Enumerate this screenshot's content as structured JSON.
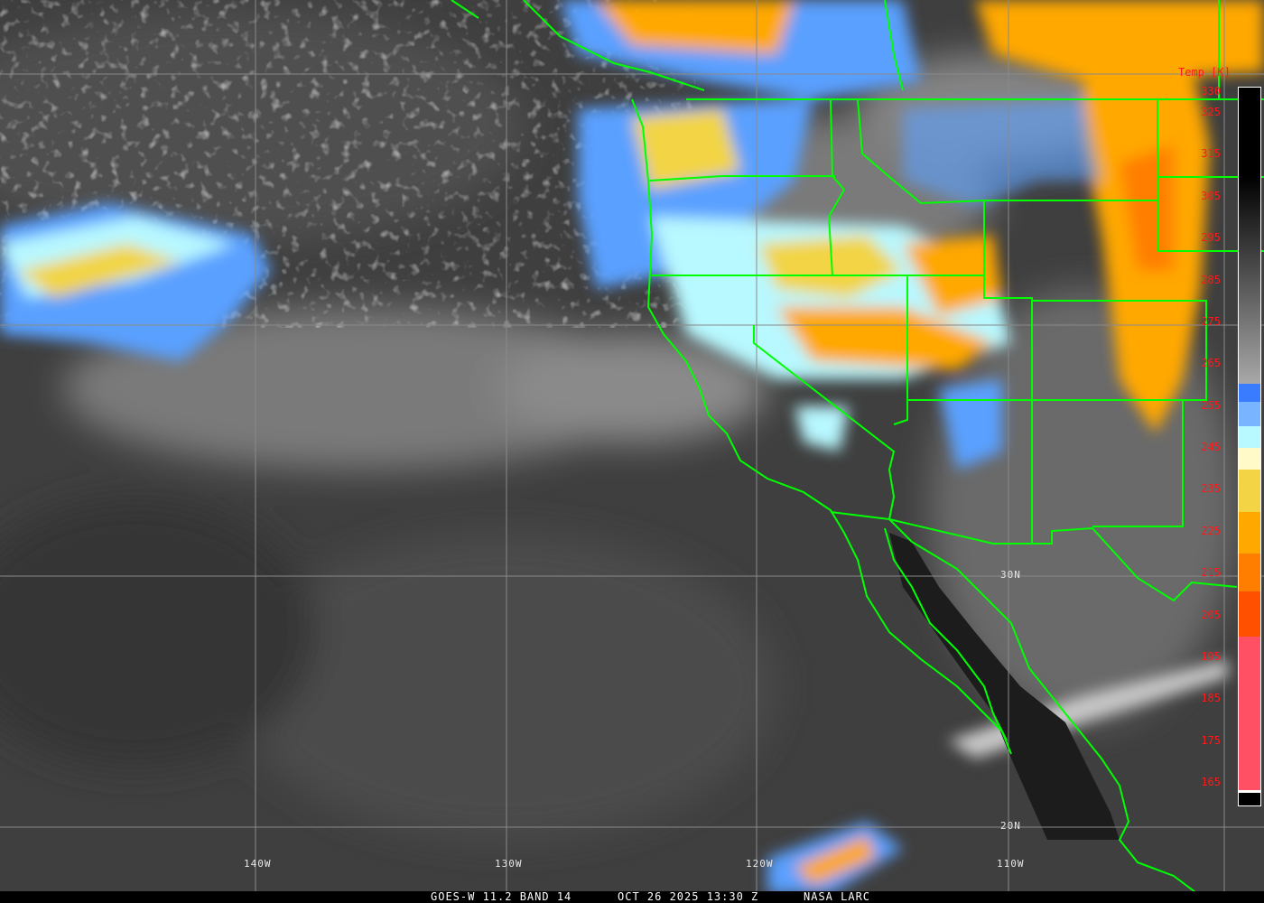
{
  "footer": {
    "satellite": "GOES-W 11.2 BAND 14",
    "datetime": "OCT 26 2025 13:30 Z",
    "credit": "NASA LARC"
  },
  "colorbar": {
    "title": "Temp [K]",
    "labels": [
      "330",
      "325",
      "315",
      "305",
      "295",
      "285",
      "275",
      "265",
      "255",
      "245",
      "235",
      "225",
      "215",
      "205",
      "195",
      "185",
      "175",
      "165"
    ],
    "colors": {
      "warm_top": "#000000",
      "warm_bottom": "#a8a8a8",
      "blue": "#3a7cff",
      "light_blue": "#78b4ff",
      "cyan": "#b8f8ff",
      "cream": "#fffac8",
      "yellow": "#f2d444",
      "orange": "#ffa800",
      "dark_orange": "#ff7e00",
      "red_orange": "#ff5000",
      "pink": "#ff5064",
      "bottom": "#000000"
    }
  },
  "grid_labels": {
    "lon": [
      "140W",
      "130W",
      "120W",
      "110W"
    ],
    "lat": [
      "30N",
      "20N"
    ]
  },
  "map": {
    "boundary_color": "#00ff00",
    "grid_color": "#8a8a8a"
  }
}
